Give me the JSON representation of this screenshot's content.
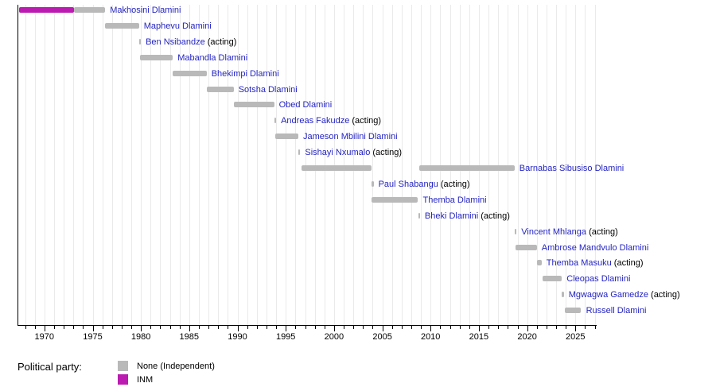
{
  "chart_data": {
    "type": "timeline-bar",
    "description": "Timeline of prime ministers with terms as horizontal bars colored by political party",
    "axis": {
      "min_year": 1967.3,
      "max_year": 2027.2,
      "major_ticks": [
        1970,
        1975,
        1980,
        1985,
        1990,
        1995,
        2000,
        2005,
        2010,
        2015,
        2020,
        2025
      ],
      "minor_tick_step": 1,
      "gridlines": true,
      "tick_label_format": "year"
    },
    "party_colors": {
      "None": "#b9b9b9",
      "INM": "#bb1bb0"
    },
    "rows": [
      {
        "name": "Makhosini Dlamini",
        "acting": false,
        "segments": [
          {
            "start": 1967.4,
            "end": 1973.1,
            "party": "INM"
          },
          {
            "start": 1973.1,
            "end": 1976.3,
            "party": "None"
          }
        ]
      },
      {
        "name": "Maphevu Dlamini",
        "acting": false,
        "segments": [
          {
            "start": 1976.3,
            "end": 1979.8,
            "party": "None"
          }
        ]
      },
      {
        "name": "Ben Nsibandze",
        "acting": true,
        "segments": [
          {
            "start": 1979.8,
            "end": 1980.0,
            "party": "None"
          }
        ]
      },
      {
        "name": "Mabandla Dlamini",
        "acting": false,
        "segments": [
          {
            "start": 1979.9,
            "end": 1983.3,
            "party": "None"
          }
        ]
      },
      {
        "name": "Bhekimpi Dlamini",
        "acting": false,
        "segments": [
          {
            "start": 1983.3,
            "end": 1986.8,
            "party": "None"
          }
        ]
      },
      {
        "name": "Sotsha Dlamini",
        "acting": false,
        "segments": [
          {
            "start": 1986.8,
            "end": 1989.6,
            "party": "None"
          }
        ]
      },
      {
        "name": "Obed Dlamini",
        "acting": false,
        "segments": [
          {
            "start": 1989.6,
            "end": 1993.8,
            "party": "None"
          }
        ]
      },
      {
        "name": "Andreas Fakudze",
        "acting": true,
        "segments": [
          {
            "start": 1993.8,
            "end": 1994.0,
            "party": "None"
          }
        ]
      },
      {
        "name": "Jameson Mbilini Dlamini",
        "acting": false,
        "segments": [
          {
            "start": 1993.9,
            "end": 1996.3,
            "party": "None"
          }
        ]
      },
      {
        "name": "Sishayi Nxumalo",
        "acting": true,
        "segments": [
          {
            "start": 1996.3,
            "end": 1996.5,
            "party": "None"
          }
        ]
      },
      {
        "name": "Barnabas Sibusiso Dlamini",
        "acting": false,
        "segments": [
          {
            "start": 1996.6,
            "end": 2003.9,
            "party": "None"
          },
          {
            "start": 2008.8,
            "end": 2018.7,
            "party": "None"
          }
        ]
      },
      {
        "name": "Paul Shabangu",
        "acting": true,
        "segments": [
          {
            "start": 2003.9,
            "end": 2004.1,
            "party": "None"
          }
        ]
      },
      {
        "name": "Themba Dlamini",
        "acting": false,
        "segments": [
          {
            "start": 2003.9,
            "end": 2008.7,
            "party": "None"
          }
        ]
      },
      {
        "name": "Bheki Dlamini",
        "acting": true,
        "segments": [
          {
            "start": 2008.7,
            "end": 2008.9,
            "party": "None"
          }
        ]
      },
      {
        "name": "Vincent Mhlanga",
        "acting": true,
        "segments": [
          {
            "start": 2018.7,
            "end": 2018.9,
            "party": "None"
          }
        ]
      },
      {
        "name": "Ambrose Mandvulo Dlamini",
        "acting": false,
        "segments": [
          {
            "start": 2018.8,
            "end": 2021.0,
            "party": "None"
          }
        ]
      },
      {
        "name": "Themba Masuku",
        "acting": true,
        "segments": [
          {
            "start": 2021.0,
            "end": 2021.5,
            "party": "None"
          }
        ]
      },
      {
        "name": "Cleopas Dlamini",
        "acting": false,
        "segments": [
          {
            "start": 2021.6,
            "end": 2023.6,
            "party": "None"
          }
        ]
      },
      {
        "name": "Mgwagwa Gamedze",
        "acting": true,
        "segments": [
          {
            "start": 2023.6,
            "end": 2023.8,
            "party": "None"
          }
        ]
      },
      {
        "name": "Russell Dlamini",
        "acting": false,
        "segments": [
          {
            "start": 2023.9,
            "end": 2025.6,
            "party": "None"
          }
        ]
      }
    ]
  },
  "labels": {
    "acting_suffix": "(acting)"
  },
  "legend": {
    "title": "Political party:",
    "items": [
      {
        "label": "None (Independent)",
        "party": "None",
        "color": "#b9b9b9"
      },
      {
        "label": "INM",
        "party": "INM",
        "color": "#bb1bb0"
      }
    ]
  },
  "colors": {
    "link_text": "#2424c3",
    "axis": "#000000",
    "gridline": "#eaeaea",
    "background": "#ffffff"
  }
}
